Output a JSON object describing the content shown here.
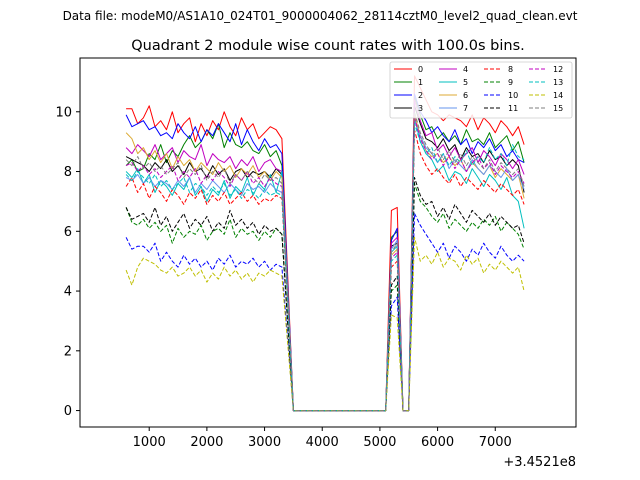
{
  "chart_data": {
    "type": "line",
    "suptitle": "Data file: modeM0/AS1A10_024T01_9000004062_28114cztM0_level2_quad_clean.evt",
    "title": "Quadrant 2 module wise count rates with 100.0s bins.",
    "xlabel": "",
    "ylabel": "",
    "offset_text": "+3.4521e8",
    "xlim": [
      -200,
      8400
    ],
    "ylim": [
      -0.55,
      11.8
    ],
    "xticks": [
      1000,
      2000,
      3000,
      4000,
      5000,
      6000,
      7000
    ],
    "xtick_labels": [
      "1000",
      "2000",
      "3000",
      "4000",
      "5000",
      "6000",
      "7000"
    ],
    "yticks": [
      0,
      2,
      4,
      6,
      8,
      10
    ],
    "ytick_labels": [
      "0",
      "2",
      "4",
      "6",
      "8",
      "10"
    ],
    "legend_position": "top-right",
    "legend_columns": 4,
    "x_segments": [
      {
        "start": 600,
        "step": 100,
        "count": 28
      },
      {
        "start": 3500,
        "step": 100,
        "count": 17
      },
      {
        "start": 5200,
        "step": 100,
        "count": 24
      }
    ],
    "series": [
      {
        "name": "0",
        "color": "#ff0000",
        "dash": "solid",
        "seg1": [
          10.1,
          10.1,
          9.6,
          9.8,
          10.2,
          9.5,
          9.7,
          9.4,
          10.0,
          9.3,
          9.6,
          9.8,
          9.0,
          9.6,
          9.2,
          9.7,
          9.4,
          10.0,
          9.5,
          9.2,
          9.8,
          9.4,
          9.6,
          9.1,
          9.3,
          9.5,
          9.4,
          9.1
        ],
        "seg3": [
          6.7,
          6.8,
          0,
          0,
          11.2,
          10.8,
          10.4,
          10.0,
          9.9,
          9.7,
          9.9,
          9.8,
          9.7,
          9.5,
          9.9,
          9.4,
          9.8,
          9.6,
          9.3,
          9.7,
          9.5,
          9.2,
          9.5,
          8.9
        ]
      },
      {
        "name": "1",
        "color": "#008000",
        "dash": "solid",
        "seg1": [
          8.2,
          8.4,
          8.0,
          8.1,
          8.6,
          8.4,
          8.9,
          8.3,
          8.7,
          8.5,
          8.9,
          9.2,
          8.8,
          9.0,
          9.4,
          9.1,
          9.6,
          8.8,
          9.3,
          8.9,
          8.8,
          9.0,
          8.7,
          8.6,
          8.9,
          8.5,
          8.7,
          8.2
        ],
        "seg3": [
          5.8,
          6.0,
          0,
          0,
          10.5,
          9.9,
          9.4,
          9.5,
          9.1,
          9.3,
          9.0,
          9.2,
          8.9,
          9.4,
          9.0,
          9.1,
          8.9,
          9.3,
          8.8,
          9.0,
          9.2,
          8.7,
          9.0,
          8.3
        ]
      },
      {
        "name": "2",
        "color": "#0000ff",
        "dash": "solid",
        "seg1": [
          9.9,
          9.5,
          9.6,
          9.7,
          9.4,
          9.5,
          9.2,
          9.3,
          9.1,
          9.6,
          9.3,
          9.1,
          9.5,
          9.0,
          9.4,
          9.2,
          9.6,
          9.3,
          9.0,
          9.6,
          8.9,
          9.4,
          9.0,
          8.7,
          9.1,
          8.8,
          8.9,
          8.6
        ],
        "seg3": [
          5.7,
          6.1,
          0,
          0,
          10.6,
          10.0,
          9.7,
          9.3,
          9.5,
          9.2,
          9.0,
          9.4,
          8.9,
          9.1,
          8.6,
          9.0,
          8.8,
          9.1,
          8.7,
          8.9,
          8.5,
          8.7,
          8.4,
          8.3
        ]
      },
      {
        "name": "3",
        "color": "#000000",
        "dash": "solid",
        "seg1": [
          8.5,
          8.4,
          8.3,
          8.2,
          8.0,
          8.3,
          8.1,
          8.4,
          8.0,
          8.2,
          7.9,
          8.3,
          8.0,
          8.1,
          7.8,
          8.2,
          7.9,
          8.1,
          7.7,
          8.0,
          8.1,
          7.8,
          8.0,
          7.9,
          8.0,
          7.8,
          8.1,
          7.9
        ],
        "seg3": [
          5.5,
          5.6,
          0,
          0,
          10.2,
          9.6,
          9.1,
          9.0,
          8.8,
          9.1,
          8.7,
          8.9,
          8.4,
          8.8,
          8.5,
          8.6,
          8.3,
          8.7,
          8.4,
          8.5,
          8.2,
          8.4,
          8.2,
          7.3
        ]
      },
      {
        "name": "4",
        "color": "#c000c0",
        "dash": "solid",
        "seg1": [
          8.8,
          8.6,
          8.9,
          8.7,
          8.5,
          8.9,
          8.4,
          8.6,
          8.8,
          8.3,
          8.7,
          8.5,
          8.4,
          8.9,
          8.2,
          8.6,
          8.4,
          8.3,
          8.5,
          8.1,
          8.4,
          8.2,
          8.5,
          8.0,
          8.3,
          8.4,
          8.1,
          8.0
        ],
        "seg3": [
          5.6,
          5.8,
          0,
          0,
          10.4,
          9.7,
          9.2,
          9.3,
          8.7,
          8.9,
          8.5,
          8.8,
          8.4,
          8.6,
          8.8,
          8.3,
          8.7,
          8.5,
          8.2,
          8.6,
          8.4,
          8.1,
          8.4,
          7.9
        ]
      },
      {
        "name": "5",
        "color": "#00bfbf",
        "dash": "solid",
        "seg1": [
          8.0,
          7.8,
          8.1,
          7.6,
          7.9,
          7.3,
          7.7,
          7.5,
          7.2,
          7.6,
          7.4,
          7.8,
          7.2,
          7.5,
          7.0,
          7.4,
          7.2,
          7.7,
          7.1,
          7.5,
          7.3,
          7.8,
          7.2,
          7.6,
          7.4,
          7.9,
          7.3,
          8.0
        ],
        "seg3": [
          5.3,
          5.5,
          0,
          0,
          9.8,
          9.0,
          8.6,
          8.4,
          8.0,
          8.2,
          7.7,
          8.0,
          7.9,
          7.6,
          8.1,
          7.8,
          7.5,
          7.9,
          7.7,
          7.4,
          7.8,
          7.2,
          7.0,
          6.1
        ]
      },
      {
        "name": "6",
        "color": "#dcaa33",
        "dash": "solid",
        "seg1": [
          9.3,
          9.1,
          8.6,
          8.8,
          8.4,
          8.7,
          8.3,
          8.6,
          8.1,
          8.5,
          8.2,
          8.4,
          8.0,
          8.3,
          8.1,
          7.9,
          8.3,
          8.0,
          8.2,
          7.8,
          8.1,
          7.9,
          8.2,
          7.8,
          8.0,
          7.7,
          8.0,
          7.8
        ],
        "seg3": [
          5.2,
          5.4,
          0,
          0,
          9.9,
          9.2,
          8.7,
          8.5,
          8.6,
          8.3,
          8.5,
          8.2,
          8.4,
          8.0,
          8.3,
          8.1,
          7.9,
          8.2,
          7.8,
          8.1,
          7.9,
          7.7,
          7.9,
          7.1
        ]
      },
      {
        "name": "7",
        "color": "#6495ed",
        "dash": "solid",
        "seg1": [
          7.8,
          7.7,
          7.9,
          7.6,
          7.8,
          7.5,
          7.7,
          7.6,
          7.4,
          7.7,
          7.5,
          7.8,
          7.3,
          7.6,
          7.4,
          7.7,
          7.5,
          7.3,
          7.6,
          7.4,
          7.2,
          7.6,
          7.4,
          7.5,
          7.3,
          7.6,
          7.4,
          7.3
        ],
        "seg3": [
          5.4,
          5.7,
          0,
          0,
          9.7,
          9.2,
          8.8,
          8.6,
          8.3,
          8.6,
          8.1,
          8.4,
          8.2,
          8.0,
          8.4,
          8.1,
          7.9,
          8.2,
          8.0,
          7.8,
          8.1,
          7.7,
          7.9,
          7.4
        ]
      },
      {
        "name": "8",
        "color": "#ff0000",
        "dash": "dashed",
        "seg1": [
          7.5,
          7.8,
          7.3,
          7.6,
          7.1,
          7.5,
          7.3,
          7.0,
          7.4,
          7.2,
          6.9,
          7.3,
          7.1,
          7.4,
          6.9,
          7.2,
          7.0,
          7.3,
          6.9,
          7.1,
          7.3,
          7.0,
          7.2,
          6.9,
          7.1,
          7.0,
          7.2,
          7.1
        ],
        "seg3": [
          4.8,
          5.0,
          0,
          0,
          9.4,
          8.6,
          8.2,
          7.9,
          8.1,
          7.8,
          7.6,
          7.9,
          7.5,
          7.8,
          7.6,
          7.4,
          7.7,
          7.5,
          7.3,
          7.6,
          7.4,
          7.2,
          7.4,
          6.9
        ]
      },
      {
        "name": "9",
        "color": "#008000",
        "dash": "dashed",
        "seg1": [
          6.8,
          6.3,
          6.2,
          6.4,
          6.1,
          6.3,
          6.0,
          6.2,
          5.6,
          6.1,
          5.8,
          6.0,
          5.9,
          6.2,
          5.7,
          6.0,
          6.1,
          5.9,
          6.4,
          5.8,
          6.1,
          5.9,
          6.0,
          5.7,
          6.0,
          5.8,
          6.1,
          5.9
        ],
        "seg3": [
          4.0,
          4.2,
          0,
          0,
          7.6,
          7.0,
          6.8,
          6.5,
          6.3,
          6.6,
          6.1,
          6.4,
          6.2,
          6.0,
          6.3,
          6.1,
          6.4,
          6.2,
          6.5,
          6.0,
          6.3,
          6.1,
          5.9,
          5.4
        ]
      },
      {
        "name": "10",
        "color": "#0000ff",
        "dash": "dashed",
        "seg1": [
          5.8,
          5.4,
          5.5,
          5.5,
          5.3,
          5.6,
          5.0,
          5.3,
          5.0,
          4.8,
          5.2,
          4.9,
          5.1,
          4.8,
          5.0,
          4.7,
          5.1,
          4.9,
          5.2,
          4.8,
          5.0,
          4.9,
          5.1,
          4.8,
          5.0,
          4.7,
          4.9,
          4.8
        ],
        "seg3": [
          3.5,
          3.8,
          0,
          0,
          6.6,
          6.2,
          5.9,
          5.6,
          5.3,
          5.6,
          5.1,
          5.5,
          5.3,
          5.0,
          5.4,
          5.2,
          5.6,
          5.3,
          5.1,
          5.5,
          5.2,
          5.0,
          5.2,
          5.0
        ]
      },
      {
        "name": "11",
        "color": "#000000",
        "dash": "dashed",
        "seg1": [
          6.8,
          6.4,
          6.5,
          6.6,
          6.3,
          6.8,
          6.2,
          6.5,
          6.0,
          6.3,
          6.6,
          6.1,
          6.4,
          6.2,
          6.5,
          6.0,
          6.3,
          6.1,
          6.7,
          6.2,
          6.4,
          6.1,
          6.3,
          5.9,
          6.2,
          6.0,
          6.1,
          5.9
        ],
        "seg3": [
          4.2,
          4.5,
          0,
          0,
          7.8,
          7.2,
          6.9,
          7.0,
          6.5,
          6.8,
          6.4,
          6.9,
          6.6,
          6.3,
          6.7,
          6.5,
          6.3,
          6.6,
          6.2,
          6.5,
          6.3,
          6.1,
          6.2,
          5.6
        ]
      },
      {
        "name": "12",
        "color": "#c000c0",
        "dash": "dashed",
        "seg1": [
          8.2,
          8.3,
          8.0,
          8.2,
          7.9,
          8.1,
          7.8,
          8.0,
          8.2,
          7.7,
          8.0,
          7.8,
          8.1,
          7.6,
          7.9,
          7.7,
          8.0,
          7.8,
          7.5,
          7.9,
          7.7,
          8.0,
          7.6,
          7.8,
          7.5,
          7.8,
          7.6,
          7.5
        ],
        "seg3": [
          5.1,
          5.3,
          0,
          0,
          9.8,
          9.1,
          8.7,
          8.4,
          8.6,
          8.2,
          8.5,
          8.1,
          8.4,
          8.0,
          8.3,
          8.5,
          8.1,
          8.3,
          7.9,
          8.2,
          8.0,
          7.8,
          8.0,
          7.6
        ]
      },
      {
        "name": "13",
        "color": "#00bfbf",
        "dash": "dashed",
        "seg1": [
          7.9,
          7.7,
          8.0,
          7.8,
          7.6,
          7.9,
          7.5,
          7.7,
          7.4,
          7.6,
          7.8,
          7.3,
          7.6,
          7.5,
          7.2,
          7.5,
          7.3,
          7.6,
          7.2,
          7.4,
          7.1,
          7.4,
          7.3,
          7.1,
          7.4,
          7.2,
          7.3,
          7.2
        ],
        "seg3": [
          5.0,
          5.2,
          0,
          0,
          9.6,
          9.0,
          8.6,
          8.8,
          8.3,
          8.6,
          8.2,
          8.5,
          8.3,
          8.7,
          8.2,
          8.5,
          8.3,
          8.8,
          8.4,
          8.6,
          8.2,
          8.9,
          8.5,
          8.4
        ]
      },
      {
        "name": "14",
        "color": "#bfbf00",
        "dash": "dashed",
        "seg1": [
          4.7,
          4.2,
          4.8,
          5.1,
          5.0,
          4.9,
          4.7,
          4.6,
          4.8,
          4.5,
          4.6,
          4.8,
          4.5,
          4.7,
          4.3,
          4.6,
          4.4,
          4.8,
          4.5,
          4.7,
          4.4,
          4.6,
          4.3,
          4.6,
          4.5,
          4.7,
          4.6,
          4.5
        ],
        "seg3": [
          3.2,
          3.1,
          0,
          0,
          5.8,
          5.0,
          5.2,
          4.9,
          5.3,
          4.8,
          5.1,
          5.0,
          4.7,
          5.2,
          4.9,
          5.1,
          4.6,
          4.9,
          4.7,
          5.0,
          4.8,
          4.6,
          4.8,
          4.0
        ]
      },
      {
        "name": "15",
        "color": "#7f7f7f",
        "dash": "dashed",
        "seg1": [
          8.4,
          8.2,
          8.5,
          8.1,
          8.3,
          8.0,
          8.2,
          7.9,
          8.1,
          8.3,
          7.8,
          8.1,
          7.9,
          8.2,
          7.7,
          8.0,
          7.8,
          8.1,
          7.6,
          7.9,
          7.7,
          8.0,
          7.8,
          7.6,
          7.9,
          7.7,
          7.8,
          7.6
        ],
        "seg3": [
          5.3,
          5.6,
          0,
          0,
          10.0,
          9.3,
          8.9,
          8.6,
          8.8,
          8.4,
          8.7,
          8.3,
          8.6,
          8.2,
          8.5,
          8.3,
          8.1,
          8.4,
          8.0,
          8.3,
          8.1,
          7.9,
          8.1,
          7.5
        ]
      }
    ]
  }
}
